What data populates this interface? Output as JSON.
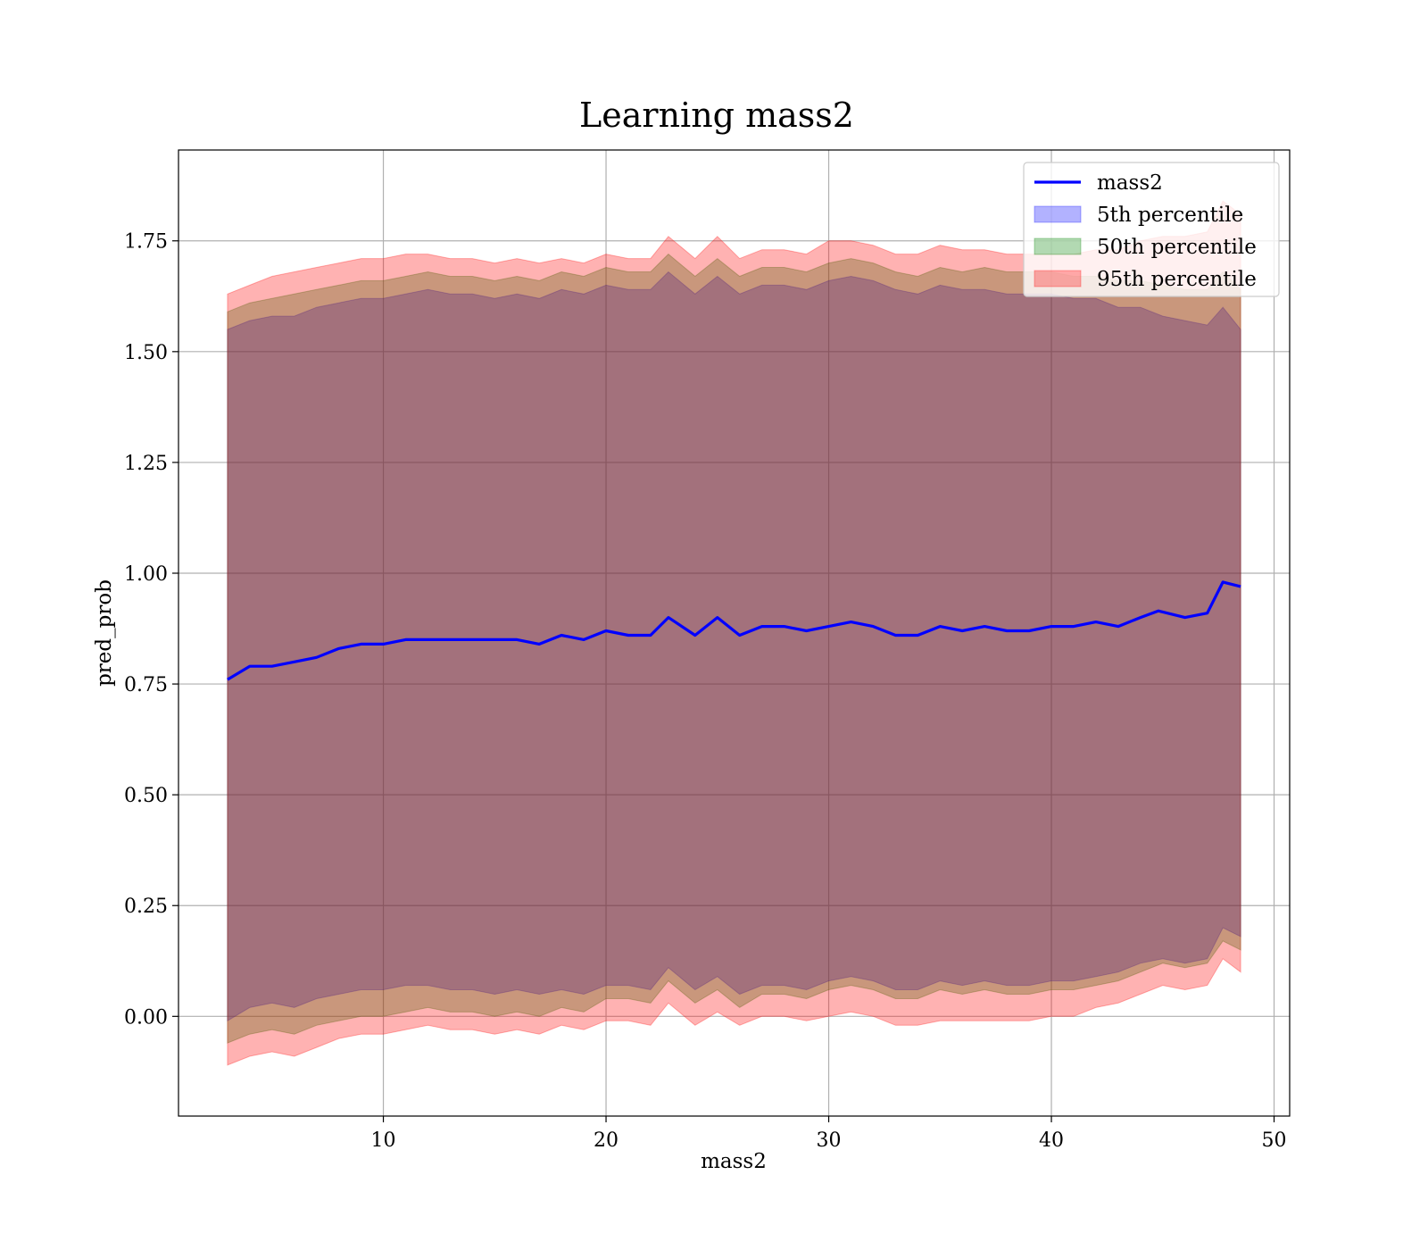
{
  "chart_data": {
    "type": "area",
    "title": "Learning mass2",
    "xlabel": "mass2",
    "ylabel": "pred_prob",
    "xlim": [
      0.8,
      50.7
    ],
    "ylim": [
      -0.225,
      1.955
    ],
    "x_ticks": [
      10,
      20,
      30,
      40,
      50
    ],
    "y_ticks": [
      0.0,
      0.25,
      0.5,
      0.75,
      1.0,
      1.25,
      1.5,
      1.75
    ],
    "y_tick_labels": [
      "0.00",
      "0.25",
      "0.50",
      "0.75",
      "1.00",
      "1.25",
      "1.50",
      "1.75"
    ],
    "grid": true,
    "legend_position": "top-right",
    "line": {
      "name": "mass2",
      "color": "#0000ff",
      "x": [
        3.0,
        4.0,
        5.0,
        6.0,
        7.0,
        8.0,
        9.0,
        10.0,
        11.0,
        12.0,
        13.0,
        14.0,
        15.0,
        16.0,
        17.0,
        18.0,
        19.0,
        20.0,
        21.0,
        22.0,
        22.8,
        24.0,
        25.0,
        26.0,
        27.0,
        28.0,
        29.0,
        30.0,
        31.0,
        32.0,
        33.0,
        34.0,
        35.0,
        36.0,
        37.0,
        38.0,
        39.0,
        40.0,
        41.0,
        42.0,
        43.0,
        44.0,
        44.8,
        46.0,
        47.0,
        47.7,
        48.5
      ],
      "y": [
        0.76,
        0.79,
        0.79,
        0.8,
        0.81,
        0.83,
        0.84,
        0.84,
        0.85,
        0.85,
        0.85,
        0.85,
        0.85,
        0.85,
        0.84,
        0.86,
        0.85,
        0.87,
        0.86,
        0.86,
        0.9,
        0.86,
        0.9,
        0.86,
        0.88,
        0.88,
        0.87,
        0.88,
        0.89,
        0.88,
        0.86,
        0.86,
        0.88,
        0.87,
        0.88,
        0.87,
        0.87,
        0.88,
        0.88,
        0.89,
        0.88,
        0.9,
        0.915,
        0.9,
        0.91,
        0.98,
        0.97
      ]
    },
    "bands": [
      {
        "name": "5th percentile",
        "color": "#0000ff",
        "x": [
          3.0,
          4.0,
          5.0,
          6.0,
          7.0,
          8.0,
          9.0,
          10.0,
          11.0,
          12.0,
          13.0,
          14.0,
          15.0,
          16.0,
          17.0,
          18.0,
          19.0,
          20.0,
          21.0,
          22.0,
          22.8,
          24.0,
          25.0,
          26.0,
          27.0,
          28.0,
          29.0,
          30.0,
          31.0,
          32.0,
          33.0,
          34.0,
          35.0,
          36.0,
          37.0,
          38.0,
          39.0,
          40.0,
          41.0,
          42.0,
          43.0,
          44.0,
          45.0,
          46.0,
          47.0,
          47.7,
          48.5
        ],
        "lower": [
          -0.01,
          0.02,
          0.03,
          0.02,
          0.04,
          0.05,
          0.06,
          0.06,
          0.07,
          0.07,
          0.06,
          0.06,
          0.05,
          0.06,
          0.05,
          0.06,
          0.05,
          0.07,
          0.07,
          0.06,
          0.11,
          0.06,
          0.09,
          0.05,
          0.07,
          0.07,
          0.06,
          0.08,
          0.09,
          0.08,
          0.06,
          0.06,
          0.08,
          0.07,
          0.08,
          0.07,
          0.07,
          0.08,
          0.08,
          0.09,
          0.1,
          0.12,
          0.13,
          0.12,
          0.13,
          0.2,
          0.18
        ],
        "upper": [
          1.55,
          1.57,
          1.58,
          1.58,
          1.6,
          1.61,
          1.62,
          1.62,
          1.63,
          1.64,
          1.63,
          1.63,
          1.62,
          1.63,
          1.62,
          1.64,
          1.63,
          1.65,
          1.64,
          1.64,
          1.68,
          1.63,
          1.67,
          1.63,
          1.65,
          1.65,
          1.64,
          1.66,
          1.67,
          1.66,
          1.64,
          1.63,
          1.65,
          1.64,
          1.64,
          1.63,
          1.63,
          1.63,
          1.62,
          1.62,
          1.6,
          1.6,
          1.58,
          1.57,
          1.56,
          1.6,
          1.55
        ]
      },
      {
        "name": "50th percentile",
        "color": "#008000",
        "x": [
          3.0,
          4.0,
          5.0,
          6.0,
          7.0,
          8.0,
          9.0,
          10.0,
          11.0,
          12.0,
          13.0,
          14.0,
          15.0,
          16.0,
          17.0,
          18.0,
          19.0,
          20.0,
          21.0,
          22.0,
          22.8,
          24.0,
          25.0,
          26.0,
          27.0,
          28.0,
          29.0,
          30.0,
          31.0,
          32.0,
          33.0,
          34.0,
          35.0,
          36.0,
          37.0,
          38.0,
          39.0,
          40.0,
          41.0,
          42.0,
          43.0,
          44.0,
          45.0,
          46.0,
          47.0,
          47.7,
          48.5
        ],
        "lower": [
          -0.06,
          -0.04,
          -0.03,
          -0.04,
          -0.02,
          -0.01,
          0.0,
          0.0,
          0.01,
          0.02,
          0.01,
          0.01,
          0.0,
          0.01,
          0.0,
          0.02,
          0.01,
          0.04,
          0.04,
          0.03,
          0.08,
          0.03,
          0.06,
          0.02,
          0.05,
          0.05,
          0.04,
          0.06,
          0.07,
          0.06,
          0.04,
          0.04,
          0.06,
          0.05,
          0.06,
          0.05,
          0.05,
          0.06,
          0.06,
          0.07,
          0.08,
          0.1,
          0.12,
          0.11,
          0.12,
          0.17,
          0.15
        ],
        "upper": [
          1.59,
          1.61,
          1.62,
          1.63,
          1.64,
          1.65,
          1.66,
          1.66,
          1.67,
          1.68,
          1.67,
          1.67,
          1.66,
          1.67,
          1.66,
          1.68,
          1.67,
          1.69,
          1.68,
          1.68,
          1.72,
          1.67,
          1.71,
          1.67,
          1.69,
          1.69,
          1.68,
          1.7,
          1.71,
          1.7,
          1.68,
          1.67,
          1.69,
          1.68,
          1.69,
          1.68,
          1.68,
          1.68,
          1.67,
          1.67,
          1.66,
          1.66,
          1.65,
          1.64,
          1.64,
          1.68,
          1.64
        ]
      },
      {
        "name": "95th percentile",
        "color": "#ff0000",
        "x": [
          3.0,
          4.0,
          5.0,
          6.0,
          7.0,
          8.0,
          9.0,
          10.0,
          11.0,
          12.0,
          13.0,
          14.0,
          15.0,
          16.0,
          17.0,
          18.0,
          19.0,
          20.0,
          21.0,
          22.0,
          22.8,
          24.0,
          25.0,
          26.0,
          27.0,
          28.0,
          29.0,
          30.0,
          31.0,
          32.0,
          33.0,
          34.0,
          35.0,
          36.0,
          37.0,
          38.0,
          39.0,
          40.0,
          41.0,
          42.0,
          43.0,
          44.0,
          45.0,
          46.0,
          47.0,
          47.7,
          48.5
        ],
        "lower": [
          -0.11,
          -0.09,
          -0.08,
          -0.09,
          -0.07,
          -0.05,
          -0.04,
          -0.04,
          -0.03,
          -0.02,
          -0.03,
          -0.03,
          -0.04,
          -0.03,
          -0.04,
          -0.02,
          -0.03,
          -0.01,
          -0.01,
          -0.02,
          0.03,
          -0.02,
          0.01,
          -0.02,
          0.0,
          0.0,
          -0.01,
          0.0,
          0.01,
          0.0,
          -0.02,
          -0.02,
          -0.01,
          -0.01,
          -0.01,
          -0.01,
          -0.01,
          0.0,
          0.0,
          0.02,
          0.03,
          0.05,
          0.07,
          0.06,
          0.07,
          0.13,
          0.1
        ],
        "upper": [
          1.63,
          1.65,
          1.67,
          1.68,
          1.69,
          1.7,
          1.71,
          1.71,
          1.72,
          1.72,
          1.71,
          1.71,
          1.7,
          1.71,
          1.7,
          1.71,
          1.7,
          1.72,
          1.71,
          1.71,
          1.76,
          1.71,
          1.76,
          1.71,
          1.73,
          1.73,
          1.72,
          1.75,
          1.75,
          1.74,
          1.72,
          1.72,
          1.74,
          1.73,
          1.73,
          1.72,
          1.72,
          1.72,
          1.72,
          1.73,
          1.73,
          1.75,
          1.76,
          1.76,
          1.77,
          1.84,
          1.81
        ]
      }
    ]
  }
}
